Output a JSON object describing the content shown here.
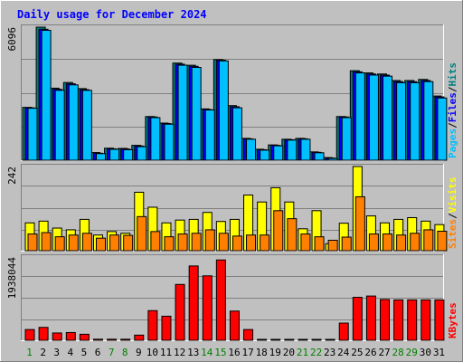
{
  "chart_data": {
    "type": "bar",
    "title": "Daily usage for December 2024",
    "categories": [
      "1",
      "2",
      "3",
      "4",
      "5",
      "6",
      "7",
      "8",
      "9",
      "10",
      "11",
      "12",
      "13",
      "14",
      "15",
      "16",
      "17",
      "18",
      "19",
      "20",
      "21",
      "22",
      "23",
      "24",
      "25",
      "26",
      "27",
      "28",
      "29",
      "30",
      "31"
    ],
    "weekend_days": [
      "1",
      "7",
      "8",
      "14",
      "15",
      "21",
      "22",
      "28",
      "29"
    ],
    "grid": true,
    "panels": [
      {
        "name": "top",
        "ymax": 6096,
        "ymax_label": "6096",
        "right_labels": [
          {
            "text": "Hits",
            "color": "#008080"
          },
          {
            "text": "/",
            "color": "#000000"
          },
          {
            "text": "Files",
            "color": "#0000ff"
          },
          {
            "text": "/",
            "color": "#000000"
          },
          {
            "text": "Pages",
            "color": "#00bfff"
          }
        ],
        "series": [
          {
            "name": "Hits",
            "color": "#008080",
            "values": [
              2420,
              6096,
              3300,
              3560,
              3280,
              350,
              550,
              540,
              680,
              2000,
              1700,
              4450,
              4350,
              2350,
              4610,
              2500,
              1000,
              500,
              700,
              960,
              1000,
              380,
              120,
              2000,
              4100,
              4000,
              3950,
              3650,
              3650,
              3700,
              2940
            ]
          },
          {
            "name": "Files",
            "color": "#0000ff",
            "values": [
              2400,
              6000,
              3250,
              3500,
              3230,
              320,
              520,
              510,
              650,
              1980,
              1680,
              4400,
              4300,
              2320,
              4580,
              2450,
              980,
              480,
              680,
              940,
              980,
              360,
              100,
              1980,
              4050,
              3950,
              3900,
              3600,
              3600,
              3650,
              2900
            ]
          },
          {
            "name": "Pages",
            "color": "#00bfff",
            "values": [
              2380,
              5950,
              3200,
              3450,
              3200,
              300,
              500,
              480,
              620,
              1950,
              1650,
              4350,
              4250,
              2300,
              4550,
              2400,
              960,
              460,
              660,
              920,
              960,
              340,
              80,
              1950,
              4000,
              3900,
              3850,
              3550,
              3550,
              3600,
              2850
            ]
          }
        ]
      },
      {
        "name": "middle",
        "ymax": 242,
        "ymax_label": "242",
        "right_labels": [
          {
            "text": "Visits",
            "color": "#ffff00"
          },
          {
            "text": "/",
            "color": "#000000"
          },
          {
            "text": "Sites",
            "color": "#ff8000"
          }
        ],
        "series": [
          {
            "name": "Visits",
            "color": "#ffff00",
            "values": [
              80,
              85,
              65,
              60,
              90,
              45,
              55,
              50,
              168,
              125,
              80,
              88,
              90,
              110,
              84,
              90,
              160,
              140,
              181,
              140,
              63,
              115,
              20,
              79,
              242,
              100,
              80,
              90,
              95,
              85,
              75
            ]
          },
          {
            "name": "Sites",
            "color": "#ff8000",
            "values": [
              48,
              52,
              40,
              45,
              50,
              36,
              45,
              44,
              98,
              55,
              40,
              48,
              50,
              60,
              50,
              42,
              45,
              45,
              115,
              92,
              48,
              40,
              30,
              39,
              155,
              48,
              48,
              45,
              50,
              60,
              56
            ]
          }
        ]
      },
      {
        "name": "bottom",
        "ymax": 1938044,
        "ymax_label": "1938044",
        "right_labels": [
          {
            "text": "KBytes",
            "color": "#ff0000"
          }
        ],
        "series": [
          {
            "name": "KBytes",
            "color": "#ff0000",
            "values": [
              250000,
              300000,
              170000,
              180000,
              140000,
              25000,
              25000,
              25000,
              120000,
              690000,
              560000,
              1300000,
              1730000,
              1500000,
              1870000,
              680000,
              250000,
              15000,
              15000,
              15000,
              15000,
              15000,
              15000,
              400000,
              1000000,
              1030000,
              950000,
              940000,
              940000,
              940000,
              940000
            ]
          }
        ]
      }
    ]
  }
}
